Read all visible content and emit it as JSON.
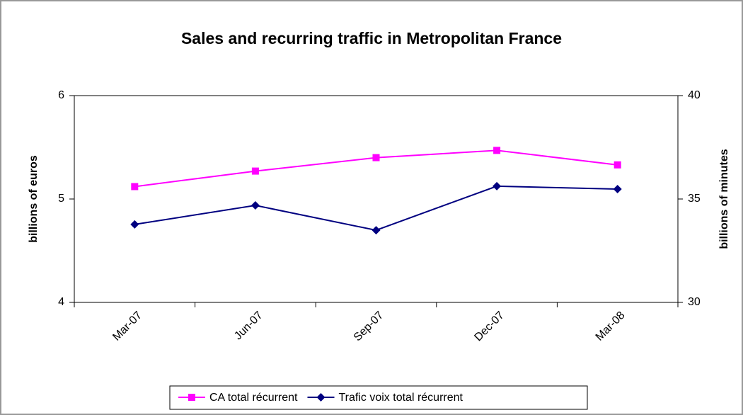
{
  "chart_data": {
    "type": "line",
    "title": "Sales and recurring traffic in Metropolitan France",
    "y_label": "billions of euros",
    "y2_label": "billions of minutes",
    "categories": [
      "Mar-07",
      "Jun-07",
      "Sep-07",
      "Dec-07",
      "Mar-08"
    ],
    "series": [
      {
        "name": "CA total récurrent",
        "color": "#ff00ff",
        "marker": "square",
        "values": [
          5.12,
          5.27,
          5.4,
          5.47,
          5.33
        ]
      },
      {
        "name": "Trafic voix total récurrent",
        "color": "#000080",
        "marker": "diamond",
        "axis": "y2",
        "values": [
          33.77,
          34.69,
          33.49,
          35.62,
          35.48
        ]
      }
    ],
    "ylim": [
      4,
      6
    ],
    "yticks": [
      4,
      5,
      6
    ],
    "y2lim": [
      30,
      40
    ],
    "y2ticks": [
      30,
      35,
      40
    ],
    "grid": false,
    "legend": "bottom"
  }
}
